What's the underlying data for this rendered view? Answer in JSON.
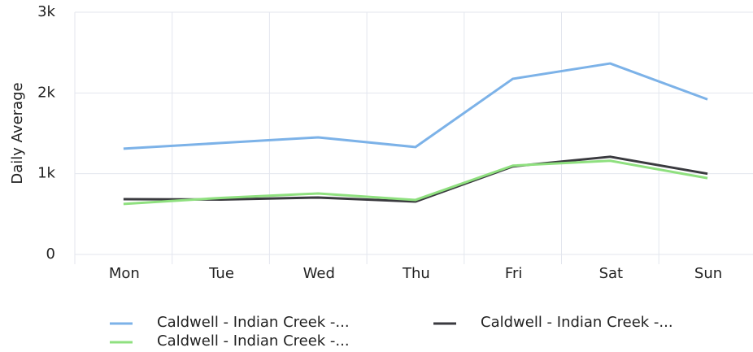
{
  "chart_data": {
    "type": "line",
    "y_label": "Daily Average",
    "categories": [
      "Mon",
      "Tue",
      "Wed",
      "Thu",
      "Fri",
      "Sat",
      "Sun"
    ],
    "series": [
      {
        "name": "Caldwell - Indian Creek -...",
        "color": "#7cb2e8",
        "values": [
          1310,
          1380,
          1450,
          1330,
          2175,
          2365,
          1920
        ]
      },
      {
        "name": "Caldwell - Indian Creek -...",
        "color": "#3a3a3f",
        "values": [
          685,
          680,
          705,
          655,
          1090,
          1210,
          1000
        ]
      },
      {
        "name": "Caldwell - Indian Creek -...",
        "color": "#8fe07f",
        "values": [
          625,
          700,
          755,
          675,
          1100,
          1160,
          945
        ]
      }
    ],
    "ylim": [
      0,
      3000
    ],
    "yticks": [
      0,
      {
        "value": 1000,
        "label": "1k"
      },
      {
        "value": 2000,
        "label": "2k"
      },
      {
        "value": 3000,
        "label": "3k"
      }
    ],
    "grid": true
  }
}
